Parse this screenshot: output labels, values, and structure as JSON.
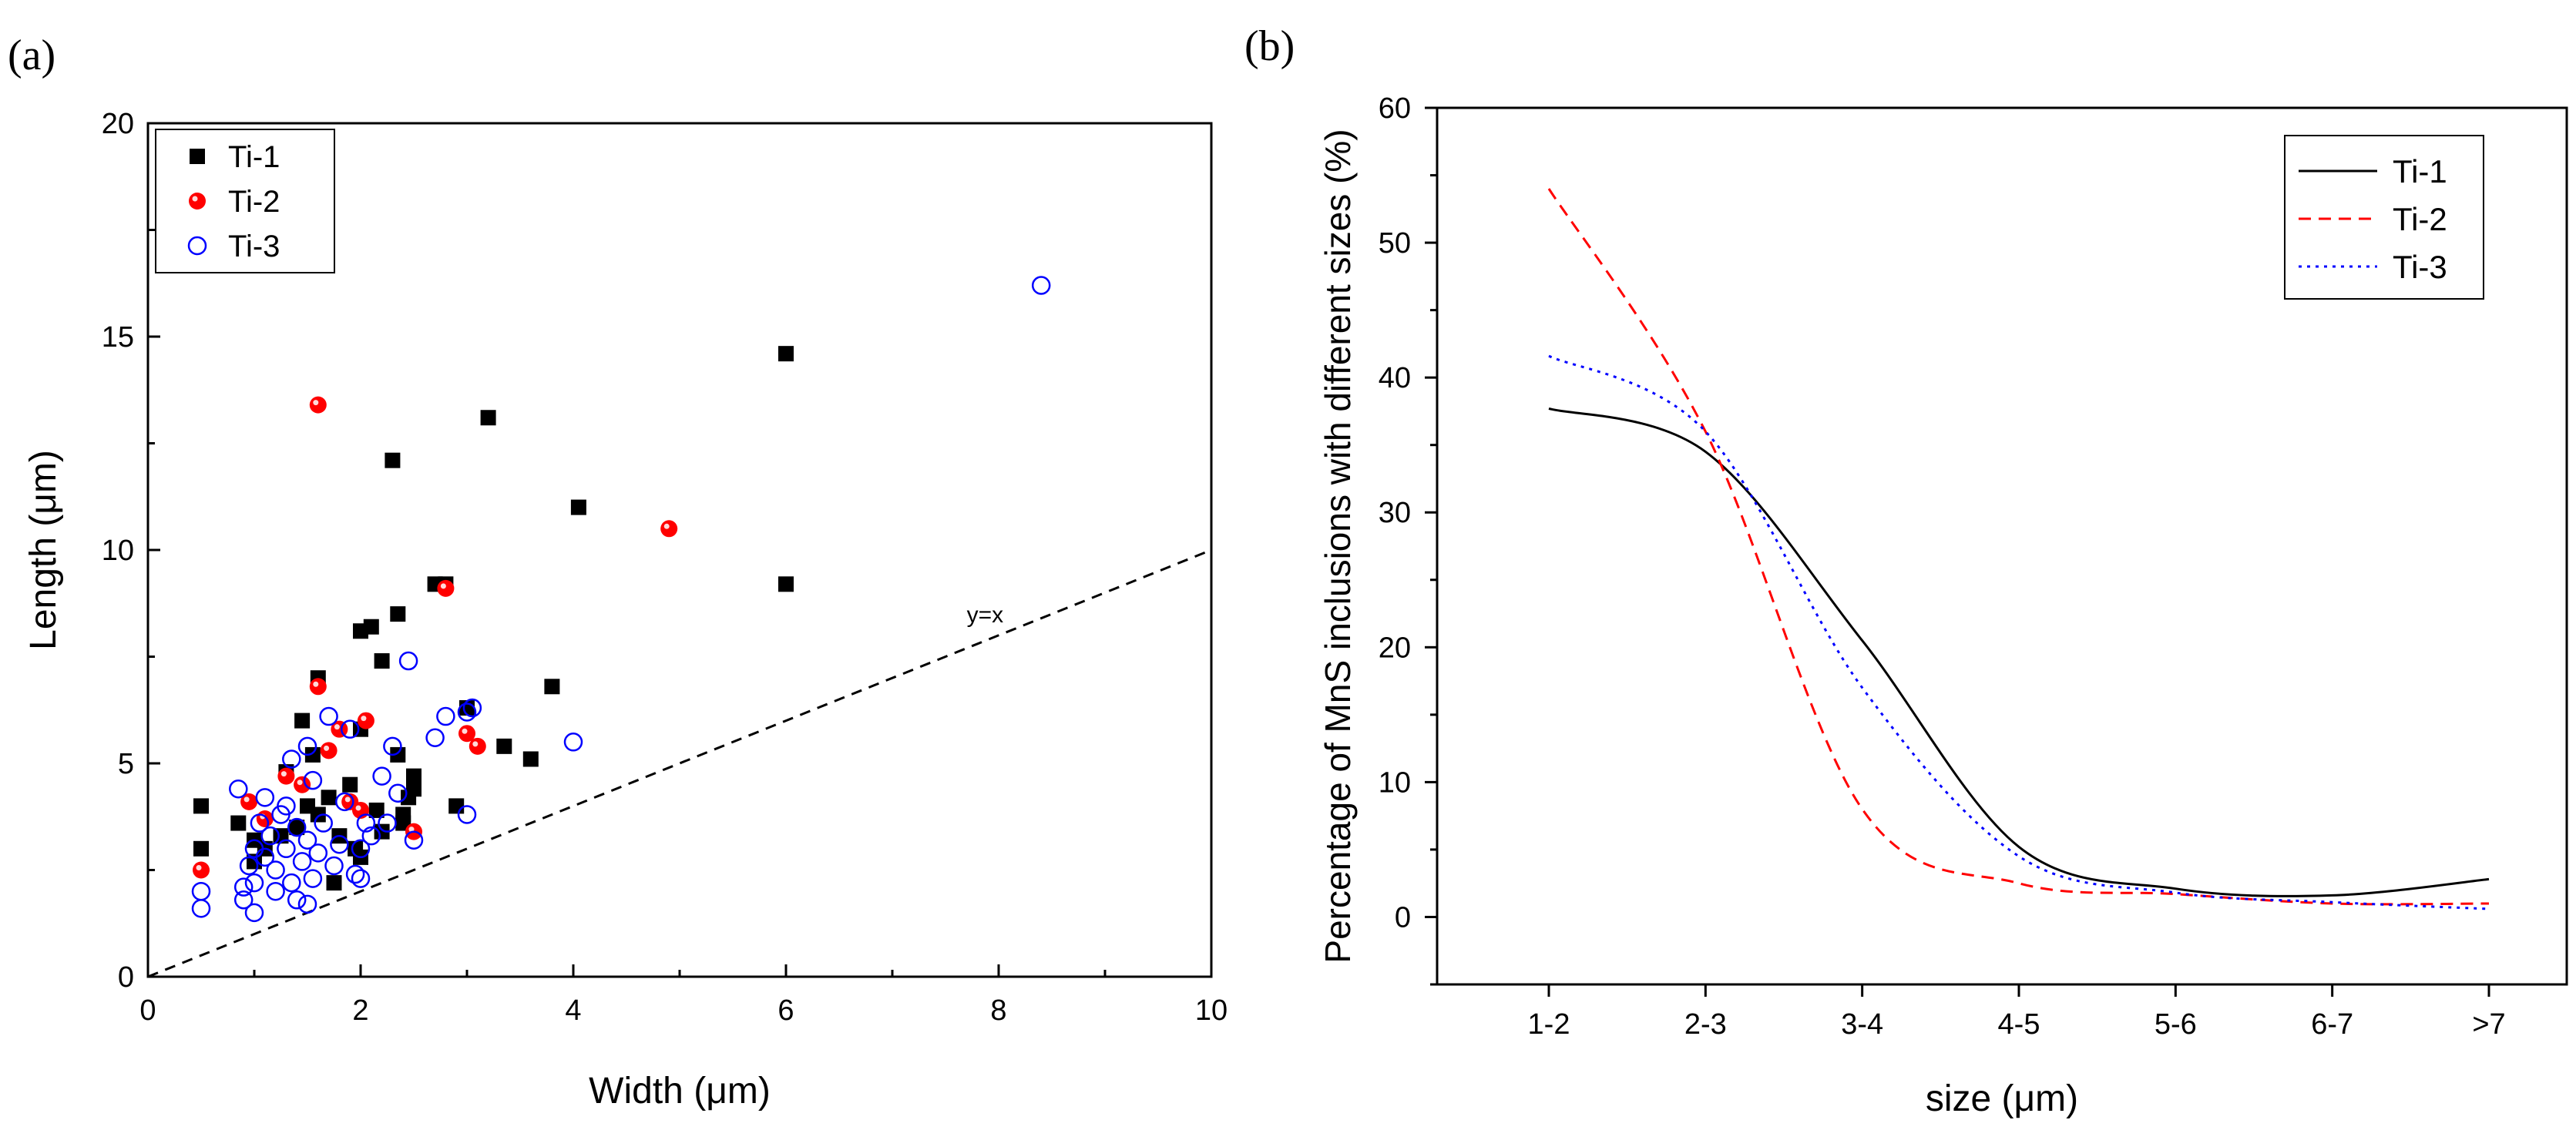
{
  "chart_data": [
    {
      "panel_label": "(a)",
      "type": "scatter",
      "xlabel": "Width (μm)",
      "ylabel": "Length (μm)",
      "xlim": [
        0,
        10
      ],
      "ylim": [
        0,
        20
      ],
      "xticks": [
        0,
        2,
        4,
        6,
        8,
        10
      ],
      "yticks": [
        0,
        5,
        10,
        15,
        20
      ],
      "legend_position": "top-left",
      "reference_line": {
        "label": "y=x",
        "x": [
          0,
          10
        ],
        "y": [
          0,
          10
        ],
        "style": "dashed"
      },
      "series": [
        {
          "name": "Ti-1",
          "marker": "filled-square",
          "color": "#000000",
          "points": [
            [
              0.5,
              3.0
            ],
            [
              0.5,
              4.0
            ],
            [
              0.85,
              3.6
            ],
            [
              1.0,
              3.2
            ],
            [
              1.0,
              2.7
            ],
            [
              1.1,
              3.0
            ],
            [
              1.25,
              3.3
            ],
            [
              1.3,
              4.8
            ],
            [
              1.4,
              3.5
            ],
            [
              1.45,
              6.0
            ],
            [
              1.5,
              4.0
            ],
            [
              1.55,
              5.2
            ],
            [
              1.6,
              7.0
            ],
            [
              1.6,
              3.8
            ],
            [
              1.7,
              4.2
            ],
            [
              1.75,
              2.2
            ],
            [
              1.8,
              3.3
            ],
            [
              1.9,
              4.5
            ],
            [
              1.95,
              3.0
            ],
            [
              2.0,
              2.8
            ],
            [
              2.0,
              5.8
            ],
            [
              2.0,
              8.1
            ],
            [
              2.1,
              8.2
            ],
            [
              2.15,
              3.9
            ],
            [
              2.2,
              7.4
            ],
            [
              2.2,
              3.4
            ],
            [
              2.3,
              12.1
            ],
            [
              2.35,
              8.5
            ],
            [
              2.35,
              5.2
            ],
            [
              2.4,
              3.8
            ],
            [
              2.4,
              3.6
            ],
            [
              2.45,
              4.2
            ],
            [
              2.5,
              4.7
            ],
            [
              2.5,
              4.4
            ],
            [
              2.7,
              9.2
            ],
            [
              2.8,
              9.2
            ],
            [
              2.9,
              4.0
            ],
            [
              3.0,
              6.3
            ],
            [
              3.2,
              13.1
            ],
            [
              3.35,
              5.4
            ],
            [
              3.6,
              5.1
            ],
            [
              3.8,
              6.8
            ],
            [
              4.05,
              11.0
            ],
            [
              6.0,
              14.6
            ],
            [
              6.0,
              9.2
            ]
          ]
        },
        {
          "name": "Ti-2",
          "marker": "filled-circle",
          "color": "#ff0000",
          "points": [
            [
              0.5,
              2.5
            ],
            [
              0.95,
              4.1
            ],
            [
              1.1,
              3.7
            ],
            [
              1.3,
              4.7
            ],
            [
              1.45,
              4.5
            ],
            [
              1.6,
              13.4
            ],
            [
              1.6,
              6.8
            ],
            [
              1.7,
              5.3
            ],
            [
              1.8,
              5.8
            ],
            [
              1.9,
              4.1
            ],
            [
              2.0,
              3.9
            ],
            [
              2.05,
              6.0
            ],
            [
              2.5,
              3.4
            ],
            [
              2.8,
              9.1
            ],
            [
              3.0,
              5.7
            ],
            [
              3.1,
              5.4
            ],
            [
              4.9,
              10.5
            ]
          ]
        },
        {
          "name": "Ti-3",
          "marker": "open-circle",
          "color": "#0000ff",
          "points": [
            [
              0.5,
              1.6
            ],
            [
              0.5,
              2.0
            ],
            [
              0.85,
              4.4
            ],
            [
              0.9,
              2.1
            ],
            [
              0.9,
              1.8
            ],
            [
              0.95,
              2.6
            ],
            [
              1.0,
              1.5
            ],
            [
              1.0,
              2.2
            ],
            [
              1.0,
              3.0
            ],
            [
              1.05,
              3.6
            ],
            [
              1.1,
              2.8
            ],
            [
              1.1,
              4.2
            ],
            [
              1.15,
              3.3
            ],
            [
              1.2,
              2.0
            ],
            [
              1.2,
              2.5
            ],
            [
              1.25,
              3.8
            ],
            [
              1.3,
              3.0
            ],
            [
              1.3,
              4.0
            ],
            [
              1.35,
              2.2
            ],
            [
              1.35,
              5.1
            ],
            [
              1.4,
              1.8
            ],
            [
              1.4,
              3.5
            ],
            [
              1.45,
              2.7
            ],
            [
              1.5,
              1.7
            ],
            [
              1.5,
              3.2
            ],
            [
              1.5,
              5.4
            ],
            [
              1.55,
              2.3
            ],
            [
              1.55,
              4.6
            ],
            [
              1.6,
              2.9
            ],
            [
              1.65,
              3.6
            ],
            [
              1.7,
              6.1
            ],
            [
              1.75,
              2.6
            ],
            [
              1.8,
              3.1
            ],
            [
              1.85,
              4.1
            ],
            [
              1.9,
              5.8
            ],
            [
              1.95,
              2.4
            ],
            [
              2.0,
              2.3
            ],
            [
              2.0,
              3.0
            ],
            [
              2.05,
              3.6
            ],
            [
              2.1,
              3.3
            ],
            [
              2.2,
              4.7
            ],
            [
              2.25,
              3.6
            ],
            [
              2.3,
              5.4
            ],
            [
              2.35,
              4.3
            ],
            [
              2.45,
              7.4
            ],
            [
              2.5,
              3.2
            ],
            [
              2.7,
              5.6
            ],
            [
              2.8,
              6.1
            ],
            [
              3.0,
              6.2
            ],
            [
              3.05,
              6.3
            ],
            [
              3.0,
              3.8
            ],
            [
              4.0,
              5.5
            ],
            [
              8.4,
              16.2
            ]
          ]
        }
      ]
    },
    {
      "panel_label": "(b)",
      "type": "line",
      "xlabel": "size (μm)",
      "ylabel": "Percentage of MnS inclusions with different sizes (%)",
      "categories": [
        "1-2",
        "2-3",
        "3-4",
        "4-5",
        "5-6",
        "6-7",
        ">7"
      ],
      "ylim": [
        -5,
        60
      ],
      "yticks": [
        0,
        10,
        20,
        30,
        40,
        50,
        60
      ],
      "legend_position": "top-right",
      "series": [
        {
          "name": "Ti-1",
          "style": "solid",
          "color": "#000000",
          "values": [
            37.7,
            34.5,
            20.5,
            5.2,
            2.1,
            1.6,
            2.8
          ]
        },
        {
          "name": "Ti-2",
          "style": "dashed",
          "color": "#ff0000",
          "values": [
            54.0,
            36.0,
            8.0,
            2.5,
            1.7,
            1.0,
            1.0
          ]
        },
        {
          "name": "Ti-3",
          "style": "dotted",
          "color": "#0000ff",
          "values": [
            41.6,
            36.0,
            17.0,
            4.5,
            1.8,
            1.1,
            0.6
          ]
        }
      ]
    }
  ]
}
